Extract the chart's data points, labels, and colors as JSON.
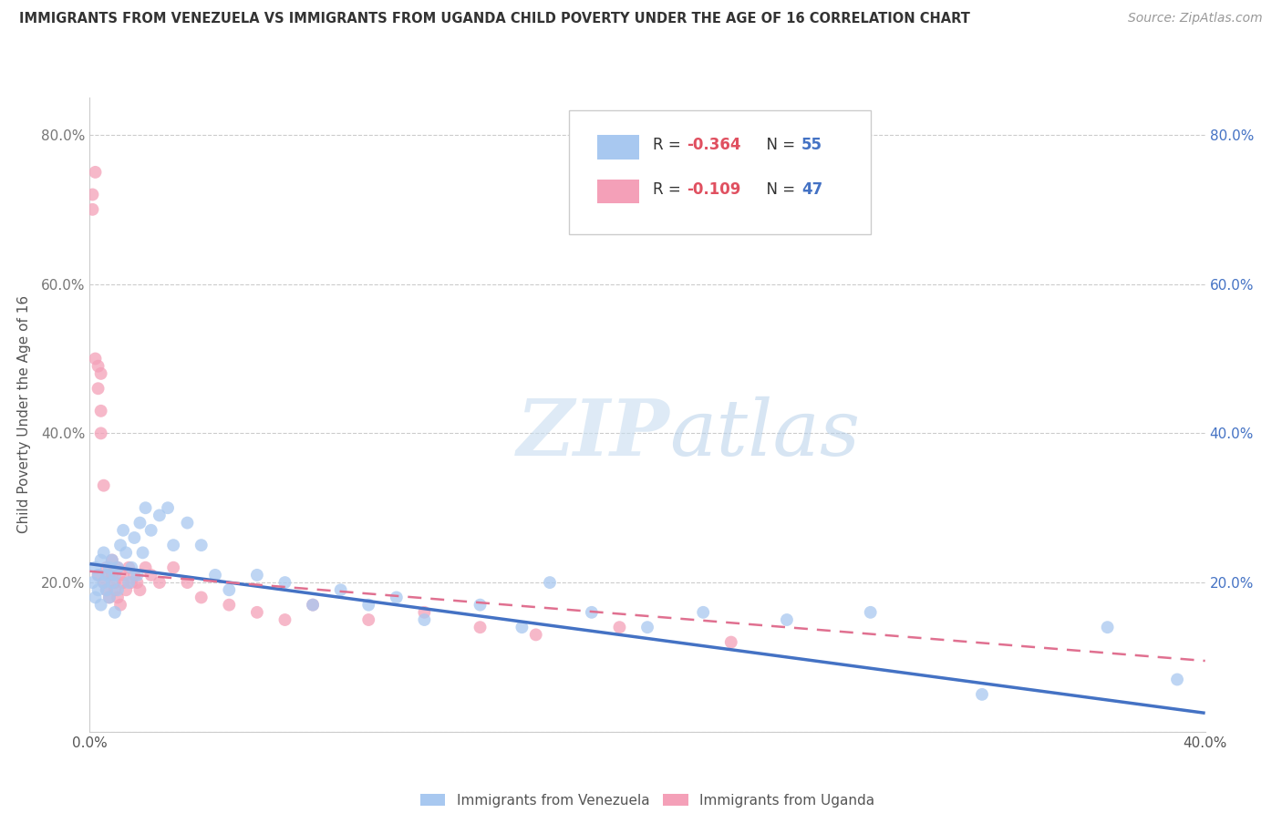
{
  "title": "IMMIGRANTS FROM VENEZUELA VS IMMIGRANTS FROM UGANDA CHILD POVERTY UNDER THE AGE OF 16 CORRELATION CHART",
  "source": "Source: ZipAtlas.com",
  "ylabel": "Child Poverty Under the Age of 16",
  "xlim": [
    0.0,
    0.4
  ],
  "ylim": [
    0.0,
    0.85
  ],
  "xticks": [
    0.0,
    0.1,
    0.2,
    0.3,
    0.4
  ],
  "xtick_labels": [
    "0.0%",
    "",
    "",
    "",
    "40.0%"
  ],
  "yticks": [
    0.0,
    0.2,
    0.4,
    0.6,
    0.8
  ],
  "ytick_labels_left": [
    "",
    "20.0%",
    "40.0%",
    "60.0%",
    "80.0%"
  ],
  "ytick_labels_right": [
    "",
    "20.0%",
    "40.0%",
    "60.0%",
    "80.0%"
  ],
  "venezuela_color": "#a8c8f0",
  "uganda_color": "#f4a0b8",
  "trend_blue": "#4472c4",
  "trend_pink": "#e07090",
  "watermark_zip": "ZIP",
  "watermark_atlas": "atlas",
  "legend_label1": "Immigrants from Venezuela",
  "legend_label2": "Immigrants from Uganda",
  "venezuela_x": [
    0.001,
    0.002,
    0.002,
    0.003,
    0.003,
    0.004,
    0.004,
    0.005,
    0.005,
    0.006,
    0.006,
    0.007,
    0.007,
    0.008,
    0.008,
    0.009,
    0.009,
    0.01,
    0.01,
    0.011,
    0.012,
    0.013,
    0.014,
    0.015,
    0.016,
    0.017,
    0.018,
    0.019,
    0.02,
    0.022,
    0.025,
    0.028,
    0.03,
    0.035,
    0.04,
    0.045,
    0.05,
    0.06,
    0.07,
    0.08,
    0.09,
    0.1,
    0.11,
    0.12,
    0.14,
    0.155,
    0.165,
    0.18,
    0.2,
    0.22,
    0.25,
    0.28,
    0.32,
    0.365,
    0.39
  ],
  "venezuela_y": [
    0.2,
    0.22,
    0.18,
    0.21,
    0.19,
    0.23,
    0.17,
    0.2,
    0.24,
    0.19,
    0.21,
    0.18,
    0.22,
    0.2,
    0.23,
    0.16,
    0.21,
    0.19,
    0.22,
    0.25,
    0.27,
    0.24,
    0.2,
    0.22,
    0.26,
    0.21,
    0.28,
    0.24,
    0.3,
    0.27,
    0.29,
    0.3,
    0.25,
    0.28,
    0.25,
    0.21,
    0.19,
    0.21,
    0.2,
    0.17,
    0.19,
    0.17,
    0.18,
    0.15,
    0.17,
    0.14,
    0.2,
    0.16,
    0.14,
    0.16,
    0.15,
    0.16,
    0.05,
    0.14,
    0.07
  ],
  "uganda_x": [
    0.001,
    0.001,
    0.002,
    0.002,
    0.003,
    0.003,
    0.003,
    0.004,
    0.004,
    0.004,
    0.005,
    0.005,
    0.006,
    0.006,
    0.007,
    0.007,
    0.008,
    0.008,
    0.009,
    0.009,
    0.01,
    0.01,
    0.011,
    0.012,
    0.012,
    0.013,
    0.014,
    0.015,
    0.016,
    0.017,
    0.018,
    0.02,
    0.022,
    0.025,
    0.03,
    0.035,
    0.04,
    0.05,
    0.06,
    0.07,
    0.08,
    0.1,
    0.12,
    0.14,
    0.16,
    0.19,
    0.23
  ],
  "uganda_y": [
    0.7,
    0.72,
    0.75,
    0.5,
    0.46,
    0.49,
    0.21,
    0.4,
    0.43,
    0.48,
    0.33,
    0.2,
    0.19,
    0.22,
    0.21,
    0.18,
    0.21,
    0.23,
    0.2,
    0.19,
    0.22,
    0.18,
    0.17,
    0.21,
    0.2,
    0.19,
    0.22,
    0.2,
    0.21,
    0.2,
    0.19,
    0.22,
    0.21,
    0.2,
    0.22,
    0.2,
    0.18,
    0.17,
    0.16,
    0.15,
    0.17,
    0.15,
    0.16,
    0.14,
    0.13,
    0.14,
    0.12
  ],
  "ven_trend_x0": 0.0,
  "ven_trend_y0": 0.225,
  "ven_trend_x1": 0.4,
  "ven_trend_y1": 0.025,
  "uga_trend_x0": 0.0,
  "uga_trend_y0": 0.215,
  "uga_trend_x1": 0.4,
  "uga_trend_y1": 0.095
}
